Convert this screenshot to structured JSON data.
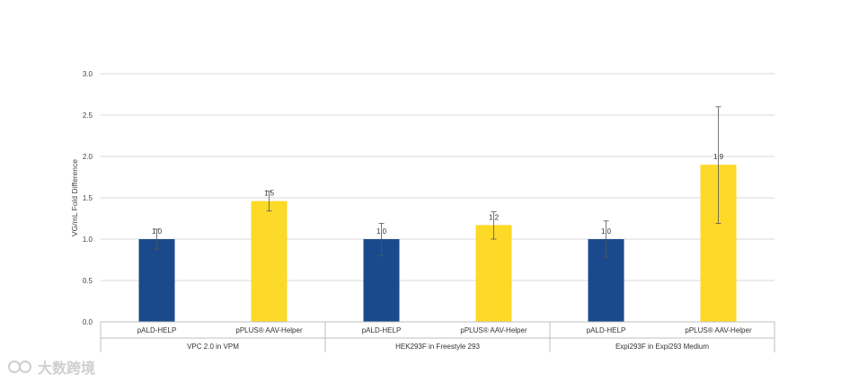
{
  "chart_data": {
    "type": "bar",
    "ylabel": "VG/mL Fold Difference",
    "ylim": [
      0,
      3.0
    ],
    "yticks": [
      "0.0",
      "0.5",
      "1.0",
      "1.5",
      "2.0",
      "2.5",
      "3.0"
    ],
    "grid": true,
    "groups": [
      {
        "label": "VPC 2.0 in VPM",
        "bars": [
          {
            "category": "pALD-HELP",
            "value": 1.0,
            "label": "1.0",
            "error_low": 0.88,
            "error_high": 1.12,
            "color": "#1a4a8c"
          },
          {
            "category": "pPLUS® AAV-Helper",
            "value": 1.46,
            "label": "1.5",
            "error_low": 1.34,
            "error_high": 1.58,
            "color": "#fdd928"
          }
        ]
      },
      {
        "label": "HEK293F in Freestyle 293",
        "bars": [
          {
            "category": "pALD-HELP",
            "value": 1.0,
            "label": "1.0",
            "error_low": 0.8,
            "error_high": 1.19,
            "color": "#1a4a8c"
          },
          {
            "category": "pPLUS® AAV-Helper",
            "value": 1.17,
            "label": "1.2",
            "error_low": 1.0,
            "error_high": 1.33,
            "color": "#fdd928"
          }
        ]
      },
      {
        "label": "Expi293F in Expi293 Medium",
        "bars": [
          {
            "category": "pALD-HELP",
            "value": 1.0,
            "label": "1.0",
            "error_low": 0.78,
            "error_high": 1.22,
            "color": "#1a4a8c"
          },
          {
            "category": "pPLUS® AAV-Helper",
            "value": 1.9,
            "label": "1.9",
            "error_low": 1.19,
            "error_high": 2.6,
            "color": "#fdd928"
          }
        ]
      }
    ]
  },
  "watermark": {
    "text": "大数跨境"
  }
}
